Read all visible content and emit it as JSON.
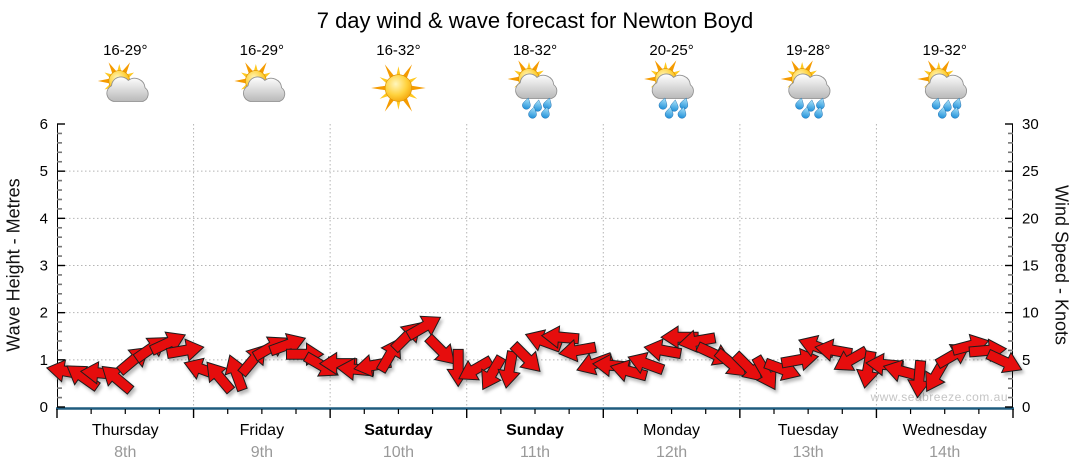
{
  "title": "7 day wind & wave forecast for Newton Boyd",
  "watermark": "www.seabreeze.com.au",
  "colors": {
    "arrow": "#e60c0c",
    "arrow_outline": "#1e1e1e",
    "bottom_axis_blue": "#1f5c7f",
    "grid_gray": "#b5b5b5",
    "axis_black": "#000000",
    "minor_tick_gray": "#777777",
    "date_gray": "#999999",
    "watermark_gray": "#c5c5c5"
  },
  "days": [
    {
      "name": "Thursday",
      "date": "8th",
      "bold": false,
      "temp": "16-29°",
      "icon": "partly-cloudy"
    },
    {
      "name": "Friday",
      "date": "9th",
      "bold": false,
      "temp": "16-29°",
      "icon": "partly-cloudy"
    },
    {
      "name": "Saturday",
      "date": "10th",
      "bold": true,
      "temp": "16-32°",
      "icon": "sunny"
    },
    {
      "name": "Sunday",
      "date": "11th",
      "bold": true,
      "temp": "18-32°",
      "icon": "partly-cloudy-rain"
    },
    {
      "name": "Monday",
      "date": "12th",
      "bold": false,
      "temp": "20-25°",
      "icon": "partly-cloudy-rain"
    },
    {
      "name": "Tuesday",
      "date": "13th",
      "bold": false,
      "temp": "19-28°",
      "icon": "partly-cloudy-rain"
    },
    {
      "name": "Wednesday",
      "date": "14th",
      "bold": false,
      "temp": "19-32°",
      "icon": "partly-cloudy-rain"
    }
  ],
  "left_axis": {
    "label": "Wave Height - Metres",
    "ticks": [
      0,
      1,
      2,
      3,
      4,
      5,
      6
    ],
    "min": 0,
    "max": 6
  },
  "right_axis": {
    "label": "Wind Speed - Knots",
    "ticks": [
      0,
      5,
      10,
      15,
      20,
      25,
      30
    ],
    "min": 0,
    "max": 30
  },
  "chart_data": {
    "type": "scatter",
    "subtype": "wind-direction-arrow-band",
    "title": "7 day wind & wave forecast for Newton Boyd",
    "x_categories": [
      "Thursday 8th",
      "Friday 9th",
      "Saturday 10th",
      "Sunday 11th",
      "Monday 12th",
      "Tuesday 13th",
      "Wednesday 14th"
    ],
    "points_per_day": 8,
    "step_hours": 3,
    "y_axis_left": {
      "label": "Wave Height - Metres",
      "range": [
        0,
        6
      ]
    },
    "y_axis_right": {
      "label": "Wind Speed - Knots",
      "range": [
        0,
        30
      ]
    },
    "grid": true,
    "legend": "none",
    "series": [
      {
        "name": "Wind speed & direction",
        "unit": "knots",
        "values": [
          3.8,
          3.2,
          3.6,
          3.0,
          5.0,
          6.2,
          6.8,
          6.0,
          4.0,
          3.2,
          3.6,
          5.0,
          6.3,
          6.6,
          5.6,
          4.4,
          4.6,
          4.0,
          4.4,
          5.5,
          7.5,
          8.5,
          6.0,
          4.2,
          4.0,
          3.6,
          4.0,
          5.2,
          7.0,
          7.4,
          6.0,
          4.6,
          4.4,
          3.8,
          4.6,
          6.0,
          7.4,
          7.0,
          5.6,
          4.6,
          4.2,
          3.6,
          4.0,
          5.0,
          6.4,
          6.0,
          5.0,
          4.0,
          4.5,
          3.8,
          3.0,
          3.4,
          5.5,
          6.5,
          6.0,
          4.8
        ],
        "arrow_rotation_deg": [
          190,
          215,
          185,
          220,
          320,
          325,
          335,
          350,
          200,
          230,
          250,
          310,
          330,
          340,
          0,
          30,
          180,
          185,
          170,
          300,
          315,
          330,
          45,
          90,
          150,
          120,
          100,
          45,
          200,
          185,
          170,
          160,
          185,
          195,
          200,
          190,
          180,
          170,
          25,
          40,
          45,
          60,
          20,
          350,
          200,
          190,
          150,
          100,
          185,
          195,
          95,
          120,
          330,
          345,
          355,
          25
        ]
      }
    ]
  }
}
